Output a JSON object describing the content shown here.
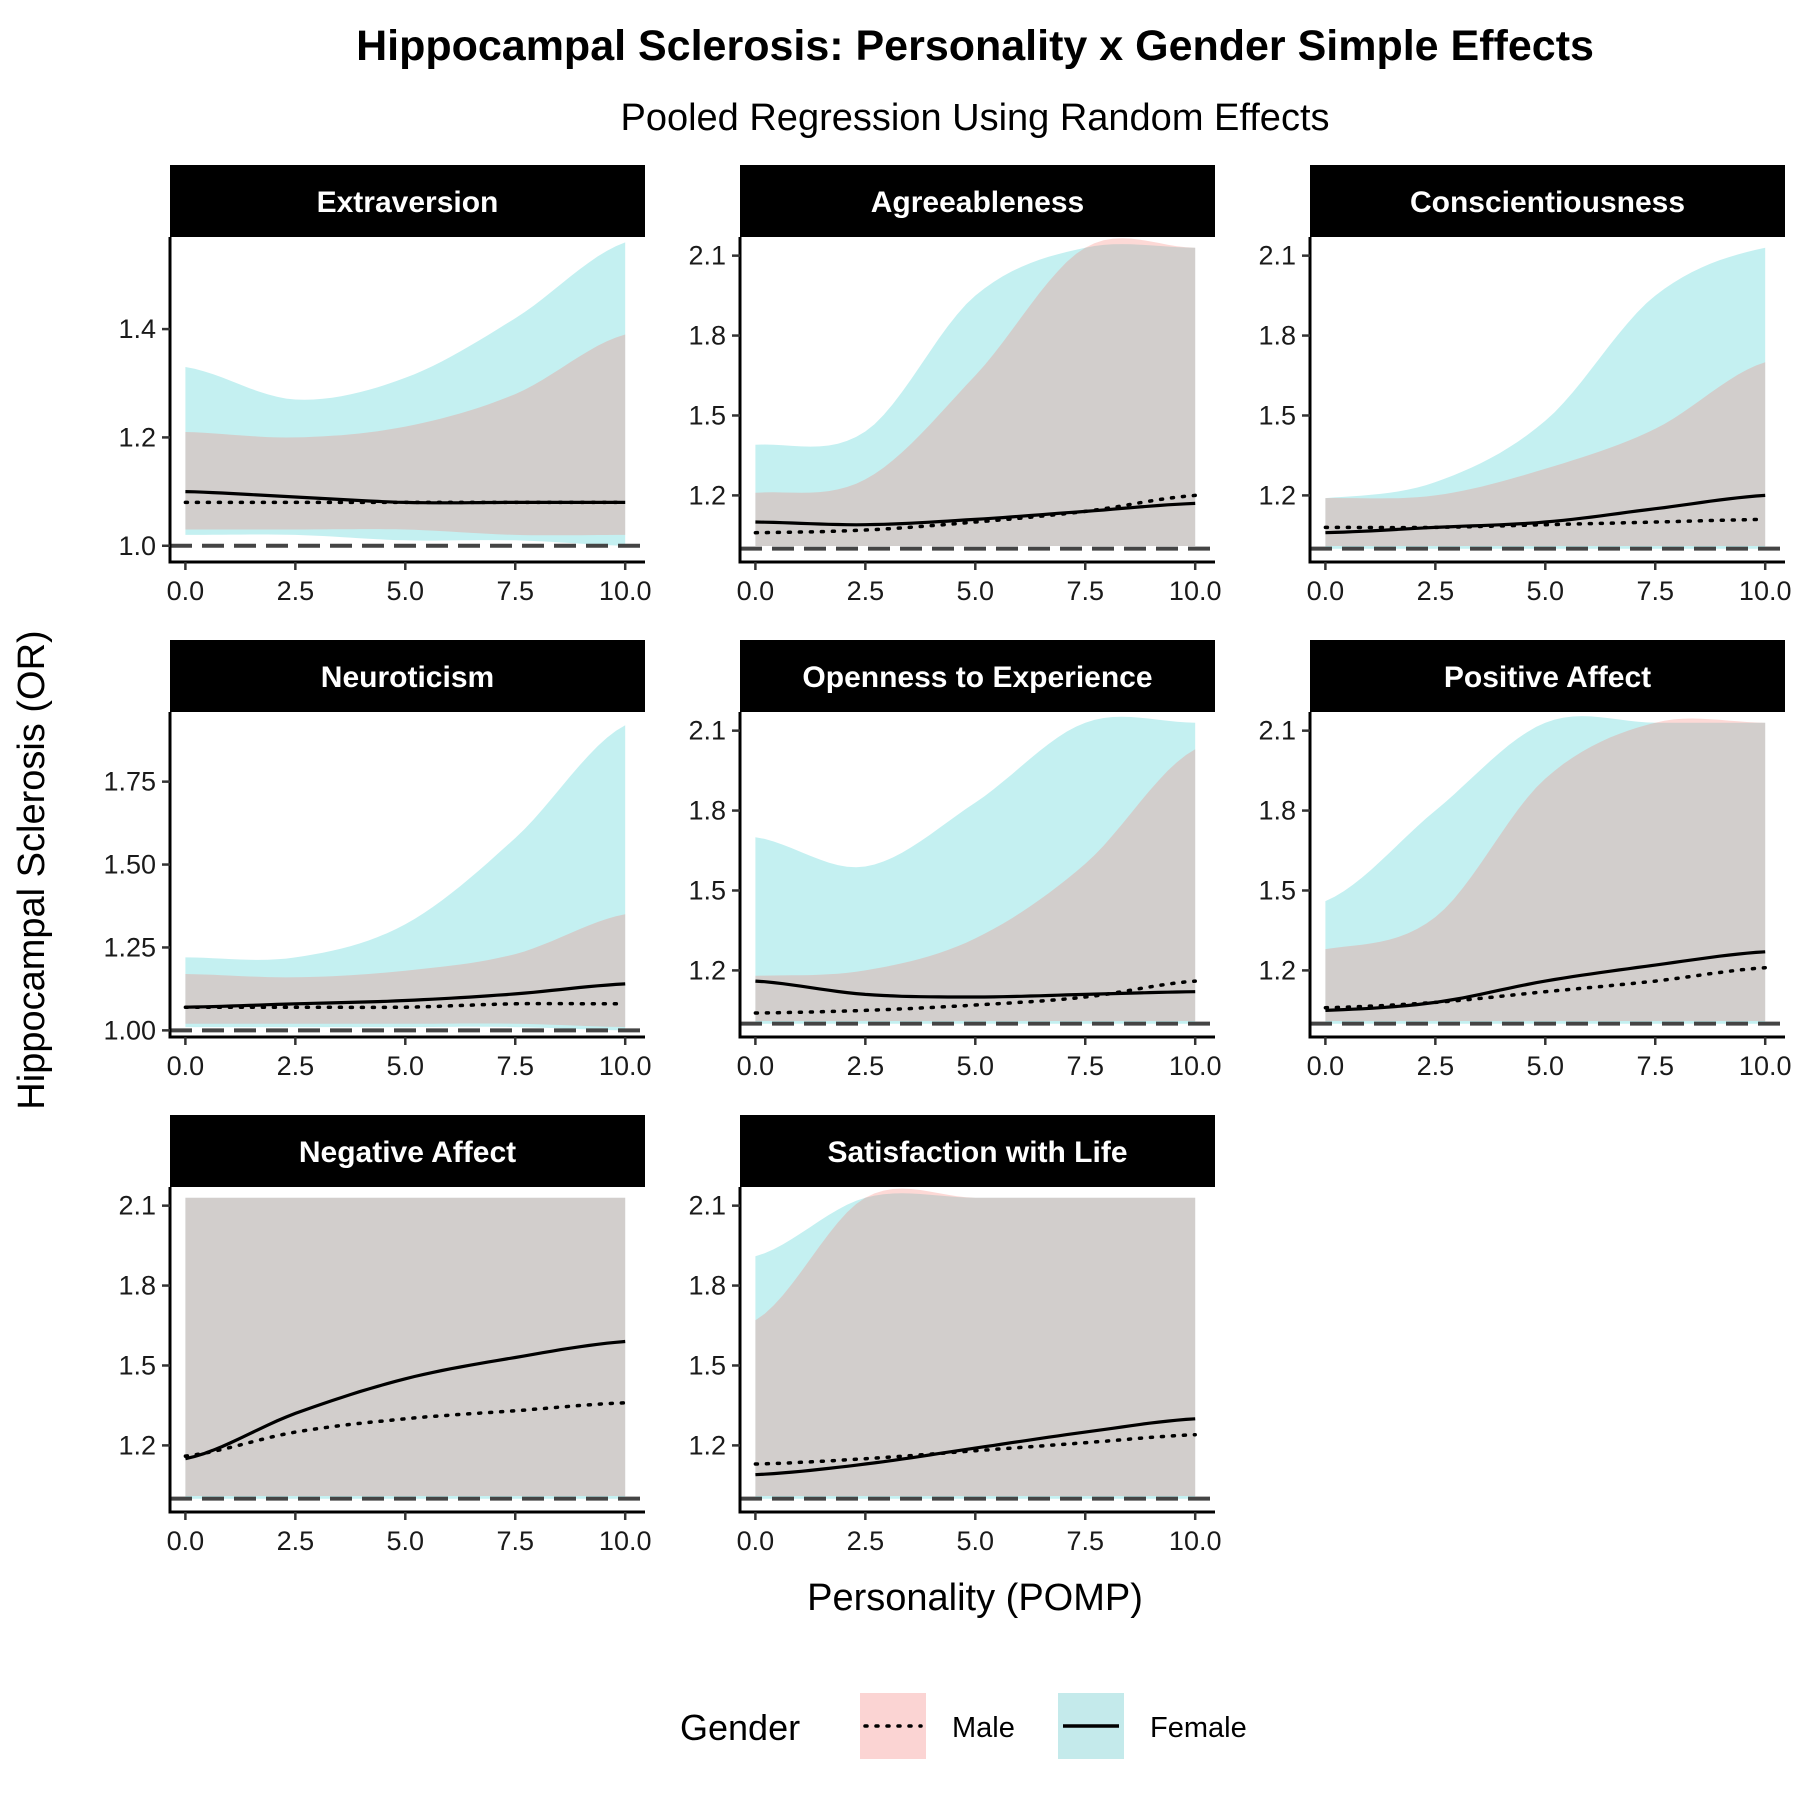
{
  "chart_data": {
    "type": "line",
    "title": "Hippocampal Sclerosis: Personality x Gender Simple Effects",
    "subtitle": "Pooled Regression Using Random Effects",
    "xlabel": "Personality (POMP)",
    "ylabel": "Hippocampal Sclerosis (OR)",
    "x_ticks": [
      "0.0",
      "2.5",
      "5.0",
      "7.5",
      "10.0"
    ],
    "reference_line": 1.0,
    "colors": {
      "male_band": "#f8766d",
      "female_band": "#00bfc4",
      "overlap": "#c1cfce",
      "strip": "#000000"
    },
    "legend": {
      "title": "Gender",
      "position": "bottom",
      "items": [
        {
          "label": "Male",
          "linetype": "dotted",
          "fill": "#fbd4d3"
        },
        {
          "label": "Female",
          "linetype": "solid",
          "fill": "#c4eaeb"
        }
      ]
    },
    "panels": [
      {
        "title": "Extraversion",
        "ylim": [
          0.97,
          1.57
        ],
        "y_ticks": [
          1.0,
          1.2,
          1.4
        ],
        "y_tick_labels": [
          "1.0",
          "1.2",
          "1.4"
        ],
        "x": [
          0,
          2.5,
          5,
          7.5,
          10
        ],
        "male_line": [
          1.08,
          1.08,
          1.08,
          1.08,
          1.08
        ],
        "female_line": [
          1.1,
          1.09,
          1.08,
          1.08,
          1.08
        ],
        "male_band_low": [
          1.03,
          1.03,
          1.03,
          1.02,
          1.02
        ],
        "male_band_high": [
          1.21,
          1.2,
          1.22,
          1.28,
          1.39
        ],
        "female_band_low": [
          1.02,
          1.02,
          1.01,
          1.01,
          1.0
        ],
        "female_band_high": [
          1.33,
          1.27,
          1.31,
          1.42,
          1.56
        ]
      },
      {
        "title": "Agreeableness",
        "ylim": [
          0.95,
          2.17
        ],
        "y_ticks": [
          1.2,
          1.5,
          1.8,
          2.1
        ],
        "y_tick_labels": [
          "1.2",
          "1.5",
          "1.8",
          "2.1"
        ],
        "x": [
          0,
          2.5,
          5,
          7.5,
          10
        ],
        "male_line": [
          1.06,
          1.07,
          1.1,
          1.14,
          1.2
        ],
        "female_line": [
          1.1,
          1.09,
          1.11,
          1.14,
          1.17
        ],
        "male_band_low": [
          1.01,
          1.01,
          1.01,
          1.01,
          1.01
        ],
        "male_band_high": [
          1.21,
          1.26,
          1.65,
          2.13,
          2.13
        ],
        "female_band_low": [
          1.01,
          1.01,
          1.01,
          1.01,
          1.01
        ],
        "female_band_high": [
          1.39,
          1.44,
          1.95,
          2.13,
          2.13
        ]
      },
      {
        "title": "Conscientiousness",
        "ylim": [
          0.95,
          2.17
        ],
        "y_ticks": [
          1.2,
          1.5,
          1.8,
          2.1
        ],
        "y_tick_labels": [
          "1.2",
          "1.5",
          "1.8",
          "2.1"
        ],
        "x": [
          0,
          2.5,
          5,
          7.5,
          10
        ],
        "male_line": [
          1.08,
          1.08,
          1.09,
          1.1,
          1.11
        ],
        "female_line": [
          1.06,
          1.08,
          1.1,
          1.15,
          1.2
        ],
        "male_band_low": [
          1.01,
          1.01,
          1.01,
          1.01,
          1.01
        ],
        "male_band_high": [
          1.19,
          1.2,
          1.3,
          1.45,
          1.7
        ],
        "female_band_low": [
          1.0,
          1.0,
          1.0,
          1.0,
          1.0
        ],
        "female_band_high": [
          1.19,
          1.25,
          1.48,
          1.95,
          2.13
        ]
      },
      {
        "title": "Neuroticism",
        "ylim": [
          0.98,
          1.96
        ],
        "y_ticks": [
          1.0,
          1.25,
          1.5,
          1.75
        ],
        "y_tick_labels": [
          "1.00",
          "1.25",
          "1.50",
          "1.75"
        ],
        "x": [
          0,
          2.5,
          5,
          7.5,
          10
        ],
        "male_line": [
          1.07,
          1.07,
          1.07,
          1.08,
          1.08
        ],
        "female_line": [
          1.07,
          1.08,
          1.09,
          1.11,
          1.14
        ],
        "male_band_low": [
          1.02,
          1.02,
          1.02,
          1.02,
          1.01
        ],
        "male_band_high": [
          1.17,
          1.16,
          1.18,
          1.23,
          1.35
        ],
        "female_band_low": [
          1.01,
          1.01,
          1.01,
          1.01,
          1.0
        ],
        "female_band_high": [
          1.22,
          1.22,
          1.32,
          1.58,
          1.92
        ]
      },
      {
        "title": "Openness to Experience",
        "ylim": [
          0.95,
          2.17
        ],
        "y_ticks": [
          1.2,
          1.5,
          1.8,
          2.1
        ],
        "y_tick_labels": [
          "1.2",
          "1.5",
          "1.8",
          "2.1"
        ],
        "x": [
          0,
          2.5,
          5,
          7.5,
          10
        ],
        "male_line": [
          1.04,
          1.05,
          1.07,
          1.1,
          1.16
        ],
        "female_line": [
          1.16,
          1.11,
          1.1,
          1.11,
          1.12
        ],
        "male_band_low": [
          1.01,
          1.01,
          1.01,
          1.01,
          1.01
        ],
        "male_band_high": [
          1.18,
          1.2,
          1.32,
          1.6,
          2.03
        ],
        "female_band_low": [
          1.0,
          1.0,
          1.0,
          1.0,
          1.0
        ],
        "female_band_high": [
          1.7,
          1.59,
          1.83,
          2.13,
          2.13
        ]
      },
      {
        "title": "Positive Affect",
        "ylim": [
          0.95,
          2.17
        ],
        "y_ticks": [
          1.2,
          1.5,
          1.8,
          2.1
        ],
        "y_tick_labels": [
          "1.2",
          "1.5",
          "1.8",
          "2.1"
        ],
        "x": [
          0,
          2.5,
          5,
          7.5,
          10
        ],
        "male_line": [
          1.06,
          1.08,
          1.12,
          1.16,
          1.21
        ],
        "female_line": [
          1.05,
          1.08,
          1.16,
          1.22,
          1.27
        ],
        "male_band_low": [
          1.01,
          1.01,
          1.01,
          1.01,
          1.01
        ],
        "male_band_high": [
          1.28,
          1.4,
          1.92,
          2.13,
          2.13
        ],
        "female_band_low": [
          1.0,
          1.0,
          1.0,
          1.0,
          1.0
        ],
        "female_band_high": [
          1.46,
          1.8,
          2.13,
          2.13,
          2.13
        ]
      },
      {
        "title": "Negative Affect",
        "ylim": [
          0.95,
          2.17
        ],
        "y_ticks": [
          1.2,
          1.5,
          1.8,
          2.1
        ],
        "y_tick_labels": [
          "1.2",
          "1.5",
          "1.8",
          "2.1"
        ],
        "x": [
          0,
          2.5,
          5,
          7.5,
          10
        ],
        "male_line": [
          1.16,
          1.25,
          1.3,
          1.33,
          1.36
        ],
        "female_line": [
          1.15,
          1.32,
          1.45,
          1.53,
          1.59
        ],
        "male_band_low": [
          1.01,
          1.01,
          1.01,
          1.01,
          1.01
        ],
        "male_band_high": [
          2.13,
          2.13,
          2.13,
          2.13,
          2.13
        ],
        "female_band_low": [
          1.0,
          1.0,
          1.0,
          1.0,
          1.0
        ],
        "female_band_high": [
          2.13,
          2.13,
          2.13,
          2.13,
          2.13
        ]
      },
      {
        "title": "Satisfaction with Life",
        "ylim": [
          0.95,
          2.17
        ],
        "y_ticks": [
          1.2,
          1.5,
          1.8,
          2.1
        ],
        "y_tick_labels": [
          "1.2",
          "1.5",
          "1.8",
          "2.1"
        ],
        "x": [
          0,
          2.5,
          5,
          7.5,
          10
        ],
        "male_line": [
          1.13,
          1.15,
          1.18,
          1.21,
          1.24
        ],
        "female_line": [
          1.09,
          1.13,
          1.19,
          1.25,
          1.3
        ],
        "male_band_low": [
          1.01,
          1.01,
          1.01,
          1.01,
          1.01
        ],
        "male_band_high": [
          1.67,
          2.13,
          2.13,
          2.13,
          2.13
        ],
        "female_band_low": [
          1.0,
          1.0,
          1.0,
          1.0,
          1.0
        ],
        "female_band_high": [
          1.91,
          2.13,
          2.13,
          2.13,
          2.13
        ]
      }
    ]
  }
}
